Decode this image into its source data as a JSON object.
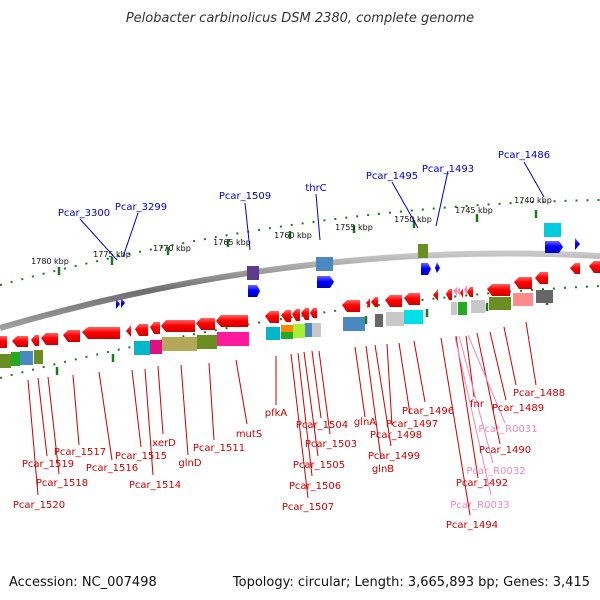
{
  "title": "Pelobacter carbinolicus DSM 2380, complete genome",
  "footer": {
    "accession": "Accession: NC_007498",
    "topology": "Topology: circular; Length: 3,665,893 bp; Genes: 3,415"
  },
  "colors": {
    "backbone": "#808080",
    "forward_gene": "#0000ff",
    "reverse_gene": "#ff0000",
    "tick": "#1a7a1a",
    "label_blue": "#0000cc",
    "label_red": "#cc0000",
    "label_pink": "#ee88bb"
  },
  "scale_labels": [
    "1780 kbp",
    "1775 kbp",
    "1770 kbp",
    "1765 kbp",
    "1760 kbp",
    "1755 kbp",
    "1750 kbp",
    "1745 kbp",
    "1740 kbp"
  ],
  "top_labels": [
    "Pcar_3300",
    "Pcar_3299",
    "Pcar_1509",
    "thrC",
    "Pcar_1495",
    "Pcar_1493",
    "Pcar_1486"
  ],
  "bottom_labels": [
    "Pcar_1520",
    "Pcar_1519",
    "Pcar_1518",
    "Pcar_1517",
    "Pcar_1516",
    "Pcar_1515",
    "Pcar_1514",
    "xerD",
    "glnD",
    "Pcar_1511",
    "mutS",
    "pfkA",
    "Pcar_1507",
    "Pcar_1506",
    "Pcar_1505",
    "Pcar_1504",
    "Pcar_1503",
    "glnA",
    "glnB",
    "Pcar_1499",
    "Pcar_1498",
    "Pcar_1497",
    "Pcar_1496",
    "Pcar_1494",
    "Pcar_1492",
    "fnr",
    "Pcar_1490",
    "Pcar_1489",
    "Pcar_1488"
  ],
  "rna_labels": [
    "Pcar_R0031",
    "Pcar_R0032",
    "Pcar_R0033"
  ]
}
